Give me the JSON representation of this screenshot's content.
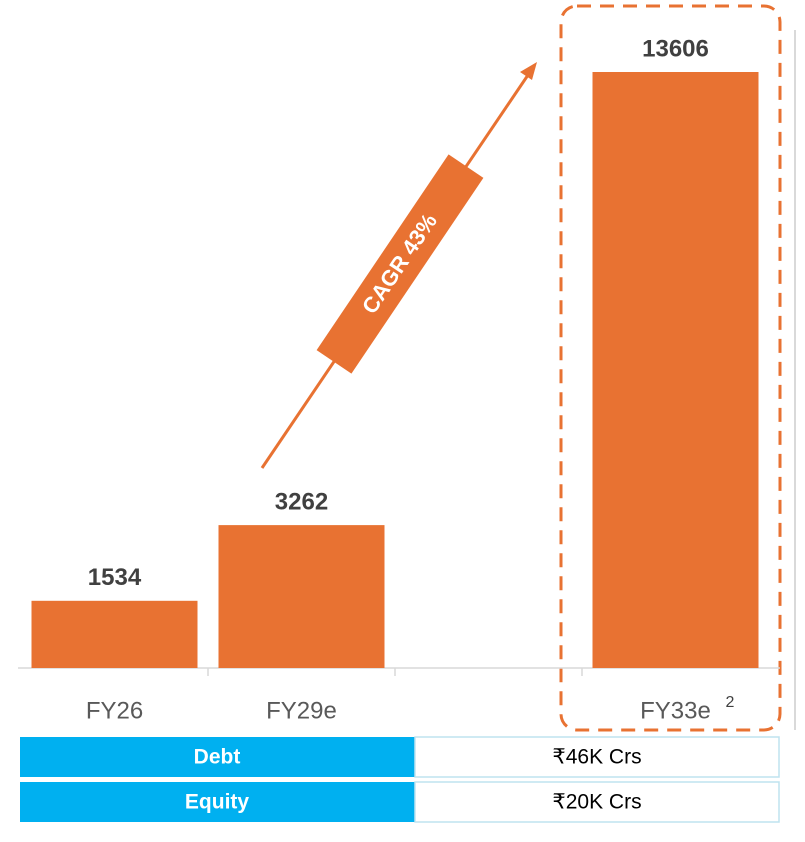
{
  "chart_data": {
    "type": "bar",
    "categories": [
      "FY26",
      "FY29e",
      null,
      "FY33e"
    ],
    "values": [
      1534,
      3262,
      null,
      13606
    ],
    "color": "#e87232",
    "category_note": "2",
    "annotation": "CAGR 43%"
  },
  "table": {
    "rows": [
      [
        "Debt",
        "₹46K Crs"
      ],
      [
        "Equity",
        "₹20K Crs"
      ]
    ]
  }
}
